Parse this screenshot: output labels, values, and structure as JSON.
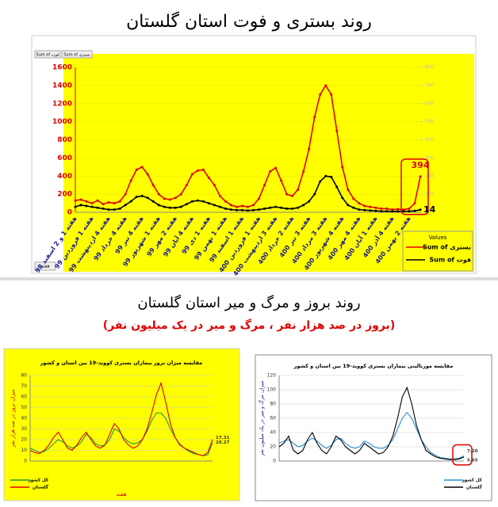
{
  "chart_data": [
    {
      "type": "line",
      "title": "روند بستری و فوت استان گلستان",
      "categories": [
        "هفته 1 و 2 اسفند 98",
        null,
        null,
        "هفته 1 فروردین 99",
        null,
        null,
        "هفته 4 اردیبهشت 99",
        null,
        null,
        "هفته 4 خرداد 99",
        null,
        null,
        "هفته 4 تیر 99",
        null,
        null,
        "هفته 1 شهریور 99",
        null,
        null,
        "هفته 2 مهر 99",
        null,
        null,
        "هفته 4 آبان 99",
        null,
        null,
        "هفته 1 دی 99",
        null,
        null,
        "هفته 1 بهمن 99",
        null,
        null,
        "هفته 1 اسفند 99",
        null,
        null,
        "هفته 1 فروردین 400",
        null,
        null,
        "هفته 3 اردیبهشت 400",
        null,
        null,
        "هفته 2 خرداد 400",
        null,
        null,
        "هفته 3 تیر 400",
        null,
        null,
        "هفته 3 مرداد 400",
        null,
        null,
        "هفته 4 شهریور 400",
        null,
        null,
        "هفته 4 مهر 400",
        null,
        null,
        "هفته 1 آبان 400",
        null,
        null,
        "هفته 4 آذر 400",
        null,
        null,
        "هفته 2 بهمن 400",
        null,
        null
      ],
      "series": [
        {
          "name": "Sum of بستری",
          "color": "#e00000",
          "values": [
            130,
            140,
            120,
            100,
            130,
            90,
            110,
            100,
            120,
            200,
            350,
            470,
            500,
            420,
            300,
            200,
            150,
            140,
            160,
            200,
            300,
            420,
            460,
            470,
            380,
            300,
            180,
            120,
            80,
            60,
            70,
            60,
            80,
            150,
            300,
            450,
            490,
            350,
            200,
            180,
            250,
            450,
            700,
            1050,
            1300,
            1400,
            1300,
            900,
            500,
            250,
            150,
            100,
            70,
            60,
            50,
            40,
            40,
            30,
            35,
            30,
            40,
            100,
            394
          ]
        },
        {
          "name": "Sum of فوت",
          "color": "#000000",
          "axis": "y2",
          "values": [
            30,
            40,
            35,
            30,
            25,
            20,
            15,
            15,
            20,
            40,
            60,
            85,
            90,
            80,
            60,
            40,
            30,
            25,
            25,
            30,
            45,
            60,
            65,
            60,
            50,
            40,
            30,
            20,
            15,
            12,
            12,
            10,
            12,
            15,
            20,
            25,
            30,
            25,
            20,
            20,
            25,
            40,
            60,
            100,
            170,
            200,
            195,
            140,
            80,
            40,
            25,
            15,
            12,
            10,
            8,
            6,
            6,
            5,
            5,
            6,
            6,
            8,
            14
          ]
        }
      ],
      "ylim": [
        0,
        1600
      ],
      "yticks": [
        0,
        200,
        400,
        600,
        800,
        1000,
        1200,
        1400,
        1600
      ],
      "y2lim": [
        0,
        800
      ],
      "y2ticks": [
        0,
        100,
        200,
        300,
        400,
        500,
        600,
        700,
        800
      ],
      "annotations": [
        "394",
        "14"
      ],
      "annotation_box": true,
      "markers": true,
      "legend": "lower right",
      "legend_title": "Values",
      "filter": "هفته"
    },
    {
      "type": "line",
      "title": "مقایسه میزان بروز بیماران بستری کووید-19 بین استان و کشور",
      "ylabel": "میزان بروز در صد هزار نفر",
      "xlabel": "هفته",
      "series": [
        {
          "name": "کل کشور",
          "color": "#1a9a3a",
          "values": [
            12,
            10,
            8,
            9,
            12,
            16,
            20,
            18,
            14,
            12,
            14,
            18,
            25,
            22,
            16,
            14,
            15,
            20,
            30,
            28,
            22,
            18,
            16,
            17,
            20,
            28,
            38,
            45,
            45,
            40,
            30,
            22,
            16,
            12,
            9,
            7,
            6,
            5,
            6,
            17.31
          ]
        },
        {
          "name": "گلستان",
          "color": "#e00000",
          "values": [
            10,
            8,
            7,
            10,
            15,
            22,
            27,
            20,
            12,
            10,
            15,
            22,
            27,
            20,
            14,
            12,
            15,
            25,
            35,
            30,
            20,
            15,
            12,
            14,
            20,
            30,
            45,
            62,
            73,
            55,
            35,
            22,
            15,
            12,
            10,
            8,
            6,
            5,
            8,
            20.27
          ]
        }
      ],
      "ylim": [
        0,
        80
      ],
      "yticks": [
        0,
        10,
        20,
        30,
        40,
        50,
        60,
        70,
        80
      ],
      "annotations": [
        "17.31",
        "20.27"
      ],
      "annotation_box": false,
      "legend": "lower left"
    },
    {
      "type": "line",
      "title": "مقایسه مورتالیتی بیماران بستری کووید-19 بین استان و کشور",
      "ylabel": "میزان مرگ و میر در یک میلیون نفر",
      "series": [
        {
          "name": "کل کشور",
          "color": "#2a8fd0",
          "values": [
            25,
            28,
            30,
            25,
            20,
            22,
            28,
            32,
            28,
            22,
            18,
            22,
            30,
            32,
            25,
            20,
            18,
            20,
            28,
            25,
            20,
            18,
            18,
            22,
            30,
            45,
            60,
            68,
            60,
            45,
            30,
            20,
            12,
            8,
            5,
            4,
            3,
            3,
            4,
            7.2
          ],
          "value_labels": {
            "39": "7.20"
          }
        },
        {
          "name": "گلستان",
          "color": "#000000",
          "values": [
            20,
            25,
            35,
            15,
            10,
            15,
            30,
            40,
            25,
            15,
            10,
            20,
            35,
            30,
            20,
            15,
            10,
            15,
            25,
            20,
            15,
            10,
            12,
            20,
            35,
            60,
            90,
            103,
            80,
            50,
            30,
            15,
            10,
            6,
            4,
            3,
            2,
            2,
            3,
            5.65
          ]
        }
      ],
      "ylim": [
        0,
        120
      ],
      "yticks": [
        0,
        20,
        40,
        60,
        80,
        100,
        120
      ],
      "annotations": [
        "7.20",
        "5.65"
      ],
      "annotation_box": true,
      "legend": "lower right"
    }
  ],
  "section_title": "روند بروز و مرگ و میر استان گلستان",
  "section_subtitle": "(بروز در صد هزار نفر ، مرگ و میر در یک میلیون نفر)"
}
